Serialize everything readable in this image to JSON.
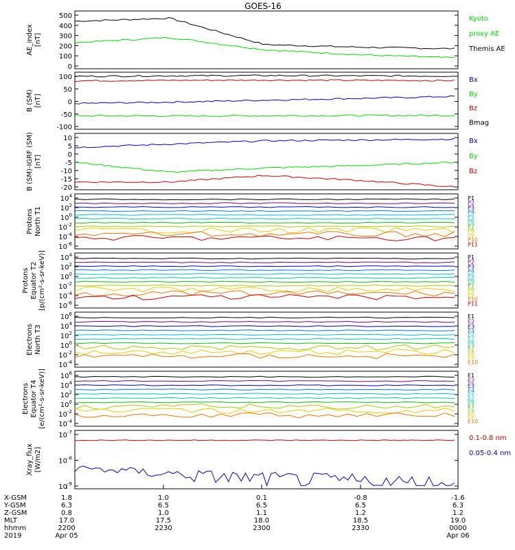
{
  "title": "GOES-16",
  "colors": {
    "black": "#000000",
    "green": "#00dd00",
    "blue": "#0000cc",
    "red": "#cc0000",
    "p_channels": [
      "#000000",
      "#7a007a",
      "#0000cc",
      "#0077ee",
      "#00bbdd",
      "#00cc99",
      "#11bb11",
      "#aacc00",
      "#eecc00",
      "#ee7700",
      "#cc0000"
    ]
  },
  "panels": [
    {
      "ylabel": [
        "AE_index",
        "[nT]"
      ],
      "yticks": [
        "500",
        "400",
        "300",
        "200",
        "100",
        "0"
      ],
      "legend": [
        {
          "text": "Kyoto",
          "color": "#00dd00"
        },
        {
          "text": "proxy AE",
          "color": "#00dd00"
        },
        {
          "text": "Themis AE",
          "color": "#000000"
        }
      ]
    },
    {
      "ylabel": [
        "B (SM)",
        "[nT]"
      ],
      "yticks": [
        "100",
        "50",
        "0",
        "-50",
        "-100"
      ],
      "legend": [
        {
          "text": "Bx",
          "color": "#0000cc"
        },
        {
          "text": "By",
          "color": "#00dd00"
        },
        {
          "text": "Bz",
          "color": "#cc0000"
        },
        {
          "text": "Bmag",
          "color": "#000000"
        }
      ]
    },
    {
      "ylabel": [
        "B (SM)-IGRF (SM)",
        "[nT]"
      ],
      "yticks": [
        "10",
        "5",
        "0",
        "-5",
        "-10",
        "-15",
        "-20"
      ],
      "legend": [
        {
          "text": "Bx",
          "color": "#0000cc"
        },
        {
          "text": "By",
          "color": "#00dd00"
        },
        {
          "text": "Bz",
          "color": "#cc0000"
        }
      ]
    },
    {
      "ylabel": [
        "Protons",
        "North T1"
      ],
      "yticks": [
        "10",
        "10",
        "10",
        "10",
        "10",
        "10"
      ],
      "yexps": [
        "4",
        "2",
        "0",
        "-2",
        "-4",
        "-6"
      ],
      "legend": [
        "P1",
        "P2",
        "P3",
        "P4",
        "P5",
        "P6",
        "P7",
        "P8",
        "P9",
        "P10",
        "P11"
      ]
    },
    {
      "ylabel": [
        "Protons",
        "Equator T2",
        "[p/(cm²-s-sr-keV)]"
      ],
      "yticks": [
        "10",
        "10",
        "10",
        "10",
        "10",
        "10"
      ],
      "yexps": [
        "4",
        "2",
        "0",
        "-2",
        "-4",
        "-6"
      ],
      "legend": [
        "P1",
        "P2",
        "P3",
        "P4",
        "P5",
        "P6",
        "P7",
        "P8",
        "P9",
        "P10",
        "P11"
      ]
    },
    {
      "ylabel": [
        "Electrons",
        "North T3"
      ],
      "yticks": [
        "10",
        "10",
        "10",
        "10",
        "10",
        "10"
      ],
      "yexps": [
        "6",
        "4",
        "2",
        "0",
        "-2",
        "-4"
      ],
      "legend": [
        "E1",
        "E2",
        "E3",
        "E4",
        "E5",
        "E6",
        "E7",
        "E8",
        "E9",
        "E10"
      ]
    },
    {
      "ylabel": [
        "Electrons",
        "Equator T4",
        "[e/(cm²-s-sr-keV)]"
      ],
      "yticks": [
        "10",
        "10",
        "10",
        "10",
        "10",
        "10"
      ],
      "yexps": [
        "6",
        "4",
        "2",
        "0",
        "-2",
        "-4"
      ],
      "legend": [
        "E1",
        "E2",
        "E3",
        "E4",
        "E5",
        "E6",
        "E7",
        "E8",
        "E9",
        "E10"
      ]
    },
    {
      "ylabel": [
        "Xray_flux",
        "[W/m2]"
      ],
      "yticks": [
        "10",
        "10",
        "10"
      ],
      "yexps": [
        "-7",
        "-8",
        "-9"
      ],
      "legend": [
        {
          "text": "0.1-0.8 nm",
          "color": "#cc0000"
        },
        {
          "text": "0.05-0.4 nm",
          "color": "#0000cc"
        }
      ]
    }
  ],
  "xaxis": {
    "rows": [
      {
        "label": "X-GSM",
        "values": [
          "1.8",
          "1.0",
          "0.1",
          "-0.8",
          "-1.6"
        ]
      },
      {
        "label": "Y-GSM",
        "values": [
          "6.3",
          "6.5",
          "6.5",
          "6.5",
          "6.3"
        ]
      },
      {
        "label": "Z-GSM",
        "values": [
          "0.8",
          "1.0",
          "1.1",
          "1.2",
          "1.2"
        ]
      },
      {
        "label": "MLT",
        "values": [
          "17.0",
          "17.5",
          "18.0",
          "18.5",
          "19.0"
        ]
      },
      {
        "label": "hhmm",
        "values": [
          "2200",
          "2230",
          "2300",
          "2330",
          "0000"
        ]
      },
      {
        "label": "2019",
        "values": [
          "Apr 05",
          "",
          "",
          "",
          "Apr 06"
        ]
      }
    ]
  },
  "chart_data": [
    {
      "type": "line",
      "title": "GOES-16",
      "ylabel": "AE_index [nT]",
      "ylim": [
        0,
        500
      ],
      "x": [
        "2200",
        "2230",
        "2300",
        "2330",
        "0000"
      ],
      "series": [
        {
          "name": "Themis AE",
          "values": [
            440,
            470,
            210,
            185,
            170
          ]
        },
        {
          "name": "Kyoto proxy AE",
          "values": [
            230,
            280,
            160,
            110,
            80
          ]
        }
      ]
    },
    {
      "type": "line",
      "ylabel": "B (SM) [nT]",
      "ylim": [
        -100,
        100
      ],
      "x": [
        "2200",
        "2230",
        "2300",
        "2330",
        "0000"
      ],
      "series": [
        {
          "name": "Bx",
          "values": [
            -8,
            -3,
            5,
            12,
            20
          ]
        },
        {
          "name": "By",
          "values": [
            -57,
            -58,
            -57,
            -56,
            -56
          ]
        },
        {
          "name": "Bz",
          "values": [
            82,
            84,
            85,
            84,
            83
          ]
        },
        {
          "name": "Bmag",
          "values": [
            100,
            102,
            103,
            102,
            101
          ]
        }
      ]
    },
    {
      "type": "line",
      "ylabel": "B (SM)-IGRF (SM) [nT]",
      "ylim": [
        -20,
        10
      ],
      "x": [
        "2200",
        "2230",
        "2300",
        "2330",
        "0000"
      ],
      "series": [
        {
          "name": "Bx",
          "values": [
            4,
            6,
            8,
            8.5,
            9
          ]
        },
        {
          "name": "By",
          "values": [
            -5,
            -11,
            -8.5,
            -7,
            -5
          ]
        },
        {
          "name": "Bz",
          "values": [
            -17,
            -17,
            -13,
            -16,
            -20
          ]
        }
      ]
    },
    {
      "type": "line",
      "ylabel": "Protons North T1",
      "ylim": [
        1e-06,
        10000.0
      ],
      "series_names": [
        "P1",
        "P2",
        "P3",
        "P4",
        "P5",
        "P6",
        "P7",
        "P8",
        "P9",
        "P10",
        "P11"
      ]
    },
    {
      "type": "line",
      "ylabel": "Protons Equator T2 [p/(cm²-s-sr-keV)]",
      "ylim": [
        1e-06,
        10000.0
      ],
      "series_names": [
        "P1",
        "P2",
        "P3",
        "P4",
        "P5",
        "P6",
        "P7",
        "P8",
        "P9",
        "P10",
        "P11"
      ]
    },
    {
      "type": "line",
      "ylabel": "Electrons North T3",
      "ylim": [
        0.0001,
        1000000.0
      ],
      "series_names": [
        "E1",
        "E2",
        "E3",
        "E4",
        "E5",
        "E6",
        "E7",
        "E8",
        "E9",
        "E10"
      ]
    },
    {
      "type": "line",
      "ylabel": "Electrons Equator T4 [e/(cm²-s-sr-keV)]",
      "ylim": [
        0.0001,
        1000000.0
      ],
      "series_names": [
        "E1",
        "E2",
        "E3",
        "E4",
        "E5",
        "E6",
        "E7",
        "E8",
        "E9",
        "E10"
      ]
    },
    {
      "type": "line",
      "ylabel": "Xray_flux [W/m2]",
      "ylim": [
        1e-09,
        1e-07
      ],
      "log_scale": true,
      "series": [
        {
          "name": "0.1-0.8 nm",
          "values": [
            6e-08,
            6e-08,
            6e-08,
            6e-08,
            6e-08
          ]
        },
        {
          "name": "0.05-0.4 nm",
          "values": [
            5e-09,
            3e-09,
            2e-09,
            1.5e-09,
            1e-09
          ]
        }
      ]
    }
  ]
}
